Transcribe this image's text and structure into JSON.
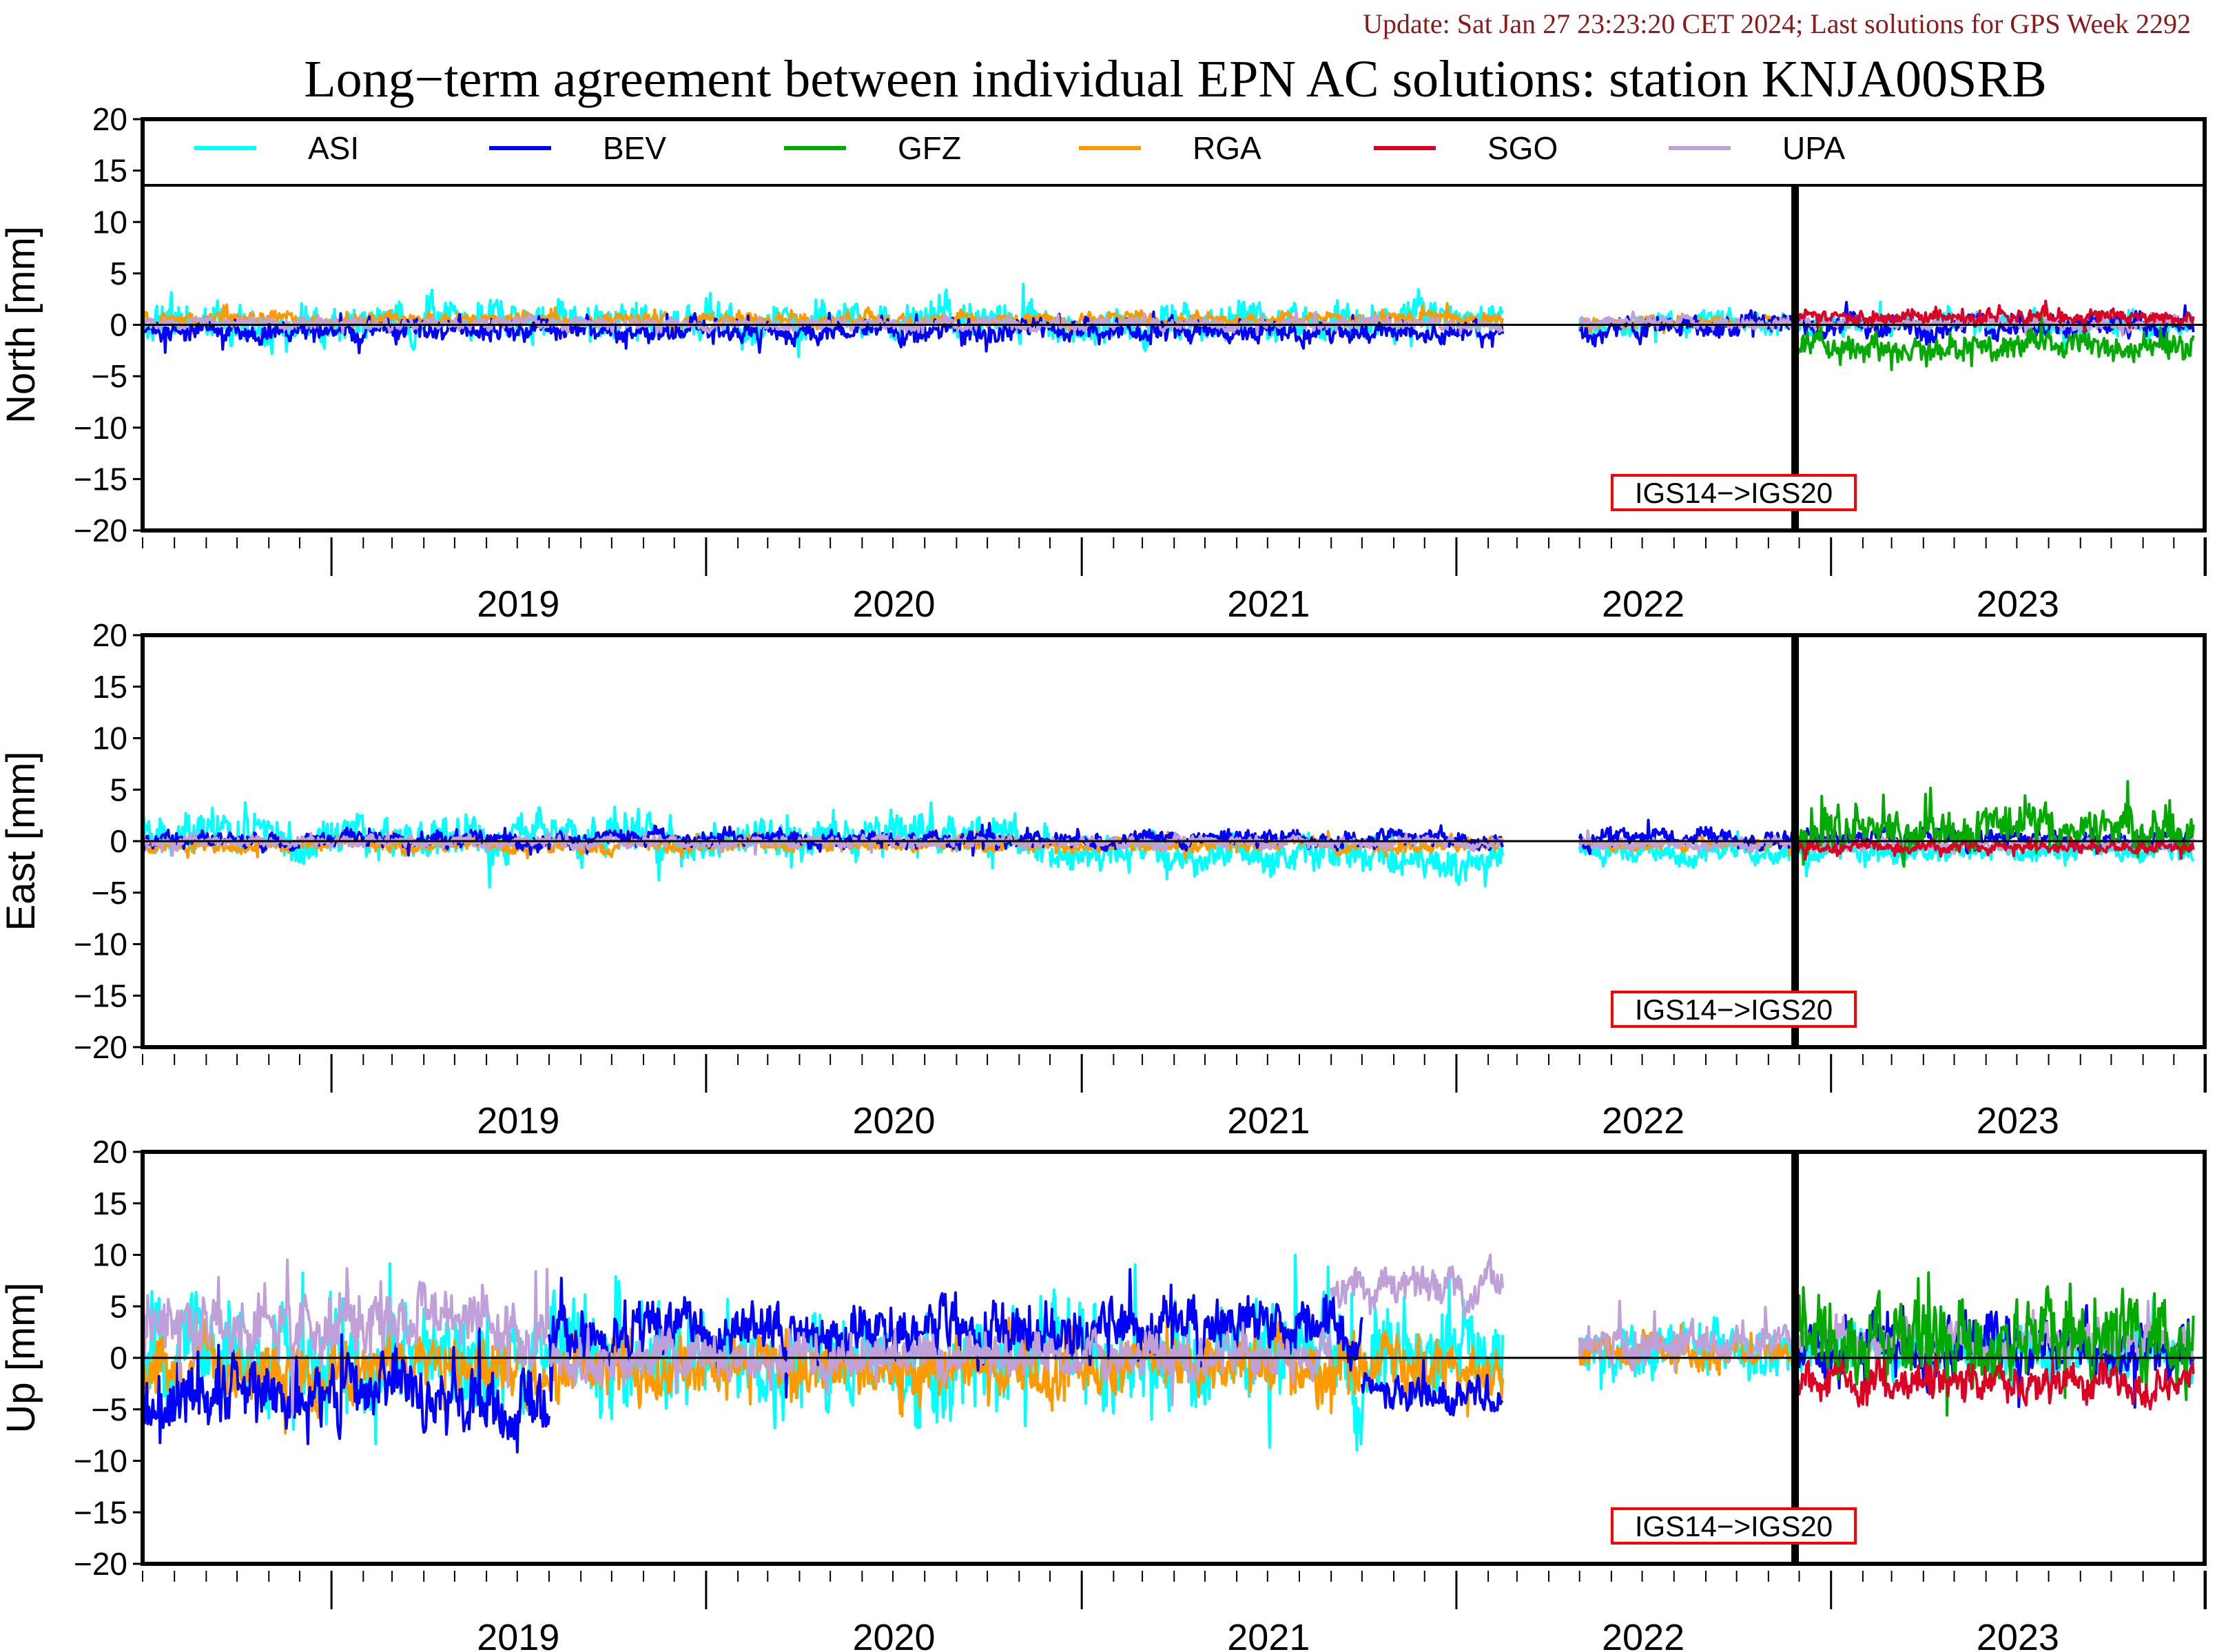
{
  "header": {
    "update_text": "Update: Sat Jan 27 23:23:20 CET 2024; Last solutions for GPS Week 2292",
    "title": "Long−term agreement between individual EPN AC solutions: station KNJA00SRB"
  },
  "colors": {
    "ASI": "#00ffff",
    "BEV": "#0000ff",
    "GFZ": "#00aa00",
    "RGA": "#ff9900",
    "SGO": "#dd0022",
    "UPA": "#c0a0d8",
    "annotation_border": "#ff0000",
    "frame": "#000000"
  },
  "legend": [
    {
      "name": "ASI"
    },
    {
      "name": "BEV"
    },
    {
      "name": "GFZ"
    },
    {
      "name": "RGA"
    },
    {
      "name": "SGO"
    },
    {
      "name": "UPA"
    }
  ],
  "chart_data": [
    {
      "type": "line",
      "ylabel": "North [mm]",
      "ylim": [
        -20,
        20
      ],
      "yticks": [
        "20",
        "15",
        "10",
        "5",
        "0",
        "−5",
        "−10",
        "−15",
        "−20"
      ],
      "xlim": [
        "2018-07-01",
        "2023-12-31"
      ],
      "xticks": [
        "2019",
        "2020",
        "2021",
        "2022",
        "2023"
      ],
      "zero_line": true,
      "legend_placement": "top",
      "annotation": {
        "text": "IGS14−>IGS20",
        "date": "2022-11-27"
      },
      "series": [
        {
          "name": "ASI",
          "segments": [
            {
              "start": "2018-07-01",
              "end": "2022-02-15",
              "mean": 0.3,
              "amp": 2.5,
              "seed": 11
            },
            {
              "start": "2022-05-01",
              "end": "2023-12-20",
              "mean": 0.2,
              "amp": 1.5,
              "seed": 12
            }
          ]
        },
        {
          "name": "BEV",
          "segments": [
            {
              "start": "2018-07-01",
              "end": "2022-02-15",
              "mean": -0.6,
              "amp": 1.5,
              "seed": 21
            },
            {
              "start": "2022-05-01",
              "end": "2023-12-20",
              "mean": -0.2,
              "amp": 1.5,
              "seed": 22
            }
          ]
        },
        {
          "name": "GFZ",
          "segments": [
            {
              "start": "2022-11-27",
              "end": "2023-12-20",
              "mean": -2.0,
              "amp": 2.0,
              "seed": 31
            }
          ]
        },
        {
          "name": "RGA",
          "segments": [
            {
              "start": "2018-07-01",
              "end": "2022-02-15",
              "mean": 0.5,
              "amp": 1.0,
              "seed": 41
            },
            {
              "start": "2022-05-01",
              "end": "2022-11-27",
              "mean": 0.3,
              "amp": 0.8,
              "seed": 42
            }
          ]
        },
        {
          "name": "SGO",
          "segments": [
            {
              "start": "2022-11-27",
              "end": "2023-12-20",
              "mean": 0.8,
              "amp": 1.0,
              "seed": 51
            }
          ]
        },
        {
          "name": "UPA",
          "segments": [
            {
              "start": "2018-07-01",
              "end": "2022-02-15",
              "mean": 0.1,
              "amp": 0.8,
              "seed": 61
            },
            {
              "start": "2022-05-01",
              "end": "2023-12-20",
              "mean": 0.2,
              "amp": 0.8,
              "seed": 62
            }
          ]
        }
      ]
    },
    {
      "type": "line",
      "ylabel": "East [mm]",
      "ylim": [
        -20,
        20
      ],
      "yticks": [
        "20",
        "15",
        "10",
        "5",
        "0",
        "−5",
        "−10",
        "−15",
        "−20"
      ],
      "xlim": [
        "2018-07-01",
        "2023-12-31"
      ],
      "xticks": [
        "2019",
        "2020",
        "2021",
        "2022",
        "2023"
      ],
      "zero_line": true,
      "annotation": {
        "text": "IGS14−>IGS20",
        "date": "2022-11-27"
      },
      "series": [
        {
          "name": "ASI",
          "segments": [
            {
              "start": "2018-07-01",
              "end": "2020-12-01",
              "mean": 0.5,
              "amp": 2.8,
              "seed": 111
            },
            {
              "start": "2020-12-01",
              "end": "2022-02-15",
              "mean": -1.5,
              "amp": 2.5,
              "seed": 112
            },
            {
              "start": "2022-05-01",
              "end": "2023-12-20",
              "mean": -1.0,
              "amp": 1.5,
              "seed": 113
            }
          ]
        },
        {
          "name": "BEV",
          "segments": [
            {
              "start": "2018-07-01",
              "end": "2022-02-15",
              "mean": 0.2,
              "amp": 1.2,
              "seed": 121
            },
            {
              "start": "2022-05-01",
              "end": "2023-12-20",
              "mean": 0.2,
              "amp": 1.2,
              "seed": 122
            }
          ]
        },
        {
          "name": "GFZ",
          "segments": [
            {
              "start": "2022-11-27",
              "end": "2023-12-20",
              "mean": 1.0,
              "amp": 3.0,
              "seed": 131
            }
          ]
        },
        {
          "name": "RGA",
          "segments": [
            {
              "start": "2018-07-01",
              "end": "2022-02-15",
              "mean": -0.4,
              "amp": 1.0,
              "seed": 141
            },
            {
              "start": "2022-05-01",
              "end": "2022-11-27",
              "mean": -0.3,
              "amp": 0.8,
              "seed": 142
            }
          ]
        },
        {
          "name": "SGO",
          "segments": [
            {
              "start": "2022-11-27",
              "end": "2023-12-20",
              "mean": -0.6,
              "amp": 0.8,
              "seed": 151
            }
          ]
        },
        {
          "name": "UPA",
          "segments": [
            {
              "start": "2018-07-01",
              "end": "2022-02-15",
              "mean": -0.1,
              "amp": 0.8,
              "seed": 161
            },
            {
              "start": "2022-05-01",
              "end": "2023-12-20",
              "mean": -0.3,
              "amp": 0.8,
              "seed": 162
            }
          ]
        }
      ]
    },
    {
      "type": "line",
      "ylabel": "Up [mm]",
      "ylim": [
        -20,
        20
      ],
      "yticks": [
        "20",
        "15",
        "10",
        "5",
        "0",
        "−5",
        "−10",
        "−15",
        "−20"
      ],
      "xlim": [
        "2018-07-01",
        "2023-12-31"
      ],
      "xticks": [
        "2019",
        "2020",
        "2021",
        "2022",
        "2023"
      ],
      "zero_line": true,
      "annotation": {
        "text": "IGS14−>IGS20",
        "date": "2022-11-27"
      },
      "series": [
        {
          "name": "ASI",
          "segments": [
            {
              "start": "2018-07-01",
              "end": "2022-02-15",
              "mean": 0.0,
              "amp": 7.0,
              "seed": 211
            },
            {
              "start": "2022-05-01",
              "end": "2023-12-20",
              "mean": 0.5,
              "amp": 3.5,
              "seed": 212
            }
          ]
        },
        {
          "name": "BEV",
          "segments": [
            {
              "start": "2018-07-01",
              "end": "2019-08-01",
              "mean": -4.0,
              "amp": 5.0,
              "seed": 221
            },
            {
              "start": "2019-08-01",
              "end": "2021-10-01",
              "mean": 2.5,
              "amp": 4.0,
              "seed": 222
            },
            {
              "start": "2021-10-01",
              "end": "2022-02-15",
              "mean": -3.5,
              "amp": 2.5,
              "seed": 223
            },
            {
              "start": "2022-11-27",
              "end": "2023-12-20",
              "mean": 1.0,
              "amp": 4.0,
              "seed": 224
            }
          ]
        },
        {
          "name": "GFZ",
          "segments": [
            {
              "start": "2022-11-27",
              "end": "2023-12-20",
              "mean": 2.0,
              "amp": 6.0,
              "seed": 231
            }
          ]
        },
        {
          "name": "RGA",
          "segments": [
            {
              "start": "2018-07-01",
              "end": "2022-02-15",
              "mean": -1.0,
              "amp": 4.0,
              "seed": 241
            },
            {
              "start": "2022-05-01",
              "end": "2022-11-27",
              "mean": 0.5,
              "amp": 2.0,
              "seed": 242
            }
          ]
        },
        {
          "name": "SGO",
          "segments": [
            {
              "start": "2022-11-27",
              "end": "2023-12-20",
              "mean": -2.5,
              "amp": 2.5,
              "seed": 251
            }
          ]
        },
        {
          "name": "UPA",
          "segments": [
            {
              "start": "2018-07-01",
              "end": "2019-08-01",
              "mean": 3.5,
              "amp": 4.5,
              "seed": 261
            },
            {
              "start": "2019-08-01",
              "end": "2021-09-01",
              "mean": 0.0,
              "amp": 3.0,
              "seed": 262
            },
            {
              "start": "2021-09-01",
              "end": "2022-02-15",
              "mean": 7.0,
              "amp": 2.5,
              "seed": 263
            },
            {
              "start": "2022-05-01",
              "end": "2023-12-20",
              "mean": 1.5,
              "amp": 2.5,
              "seed": 264
            }
          ]
        }
      ]
    }
  ]
}
